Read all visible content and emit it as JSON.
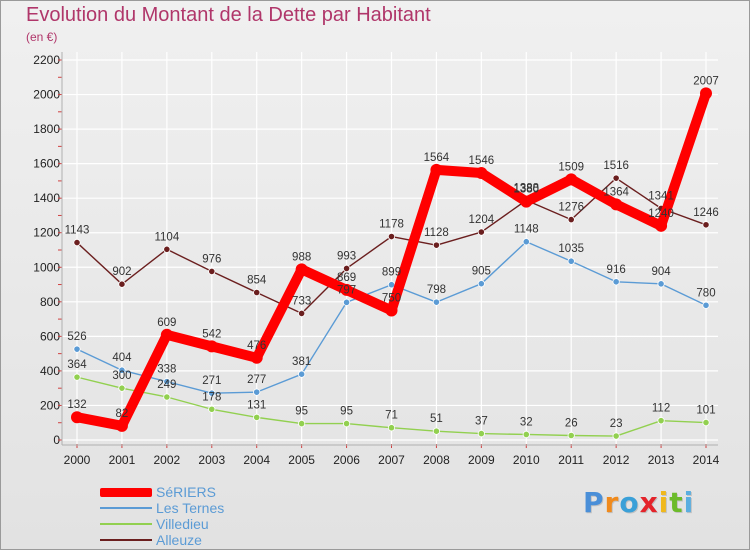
{
  "chart_data": {
    "type": "line",
    "title": "Evolution du Montant de la Dette par Habitant",
    "unit": "(en €)",
    "x": [
      "2000",
      "2001",
      "2002",
      "2003",
      "2004",
      "2005",
      "2006",
      "2007",
      "2008",
      "2009",
      "2010",
      "2011",
      "2012",
      "2013",
      "2014"
    ],
    "ylim": [
      0,
      2200
    ],
    "yticks": [
      "0",
      "200",
      "400",
      "600",
      "800",
      "1000",
      "1200",
      "1400",
      "1600",
      "1800",
      "2000",
      "2200"
    ],
    "grid": true,
    "legend_position": "bottom-left",
    "series": [
      {
        "name": "Alleuze",
        "color": "#6b1f1f",
        "values": [
          1143,
          902,
          1104,
          976,
          854,
          733,
          993,
          1178,
          1128,
          1204,
          1388,
          1276,
          1516,
          1341,
          1246
        ]
      },
      {
        "name": "Les Ternes",
        "color": "#5b9bd5",
        "values": [
          526,
          404,
          338,
          271,
          277,
          381,
          797,
          899,
          798,
          905,
          1148,
          1035,
          916,
          904,
          780
        ]
      },
      {
        "name": "Villedieu",
        "color": "#92d050",
        "values": [
          364,
          300,
          249,
          178,
          131,
          95,
          95,
          71,
          51,
          37,
          32,
          26,
          23,
          112,
          101
        ]
      },
      {
        "name": "SéRIERS",
        "color": "#ff0000",
        "values": [
          132,
          82,
          609,
          542,
          476,
          988,
          869,
          750,
          1564,
          1546,
          1380,
          1509,
          1364,
          1240,
          2007
        ]
      }
    ]
  },
  "legend": [
    "SéRIERS",
    "Les Ternes",
    "Villedieu",
    "Alleuze"
  ],
  "logo": {
    "letters": [
      "P",
      "r",
      "o",
      "x",
      "i",
      "t",
      "i"
    ],
    "colors": [
      "#4a8fd8",
      "#f08a1c",
      "#3aa0d8",
      "#e4232a",
      "#f0b81c",
      "#6cbb2a",
      "#5aaee0"
    ]
  }
}
